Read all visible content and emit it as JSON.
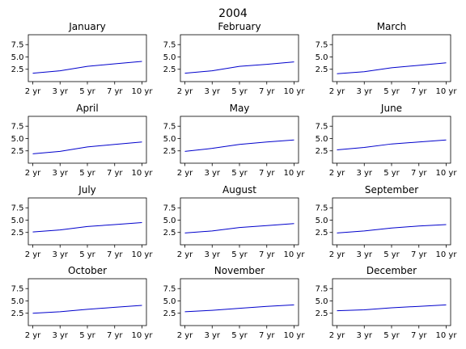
{
  "figure": {
    "title": "2004"
  },
  "chart_data": {
    "type": "line",
    "x": [
      "2 yr",
      "3 yr",
      "5 yr",
      "7 yr",
      "10 yr"
    ],
    "ylim": [
      0,
      9.5
    ],
    "yticks": [
      2.5,
      5.0,
      7.5
    ],
    "ytick_labels": [
      "2.5",
      "5.0",
      "7.5"
    ],
    "grid": false,
    "line_color": "#0000cc",
    "panels": [
      {
        "title": "January",
        "values": [
          1.7,
          2.2,
          3.1,
          3.6,
          4.1
        ]
      },
      {
        "title": "February",
        "values": [
          1.7,
          2.2,
          3.1,
          3.5,
          4.0
        ]
      },
      {
        "title": "March",
        "values": [
          1.6,
          2.0,
          2.8,
          3.3,
          3.8
        ]
      },
      {
        "title": "April",
        "values": [
          1.9,
          2.4,
          3.3,
          3.8,
          4.3
        ]
      },
      {
        "title": "May",
        "values": [
          2.4,
          3.0,
          3.8,
          4.3,
          4.7
        ]
      },
      {
        "title": "June",
        "values": [
          2.7,
          3.2,
          3.9,
          4.3,
          4.7
        ]
      },
      {
        "title": "July",
        "values": [
          2.6,
          3.0,
          3.7,
          4.1,
          4.5
        ]
      },
      {
        "title": "August",
        "values": [
          2.4,
          2.8,
          3.5,
          3.9,
          4.3
        ]
      },
      {
        "title": "September",
        "values": [
          2.4,
          2.8,
          3.4,
          3.8,
          4.1
        ]
      },
      {
        "title": "October",
        "values": [
          2.5,
          2.8,
          3.3,
          3.7,
          4.1
        ]
      },
      {
        "title": "November",
        "values": [
          2.8,
          3.1,
          3.5,
          3.9,
          4.2
        ]
      },
      {
        "title": "December",
        "values": [
          3.0,
          3.2,
          3.6,
          3.9,
          4.2
        ]
      }
    ]
  }
}
